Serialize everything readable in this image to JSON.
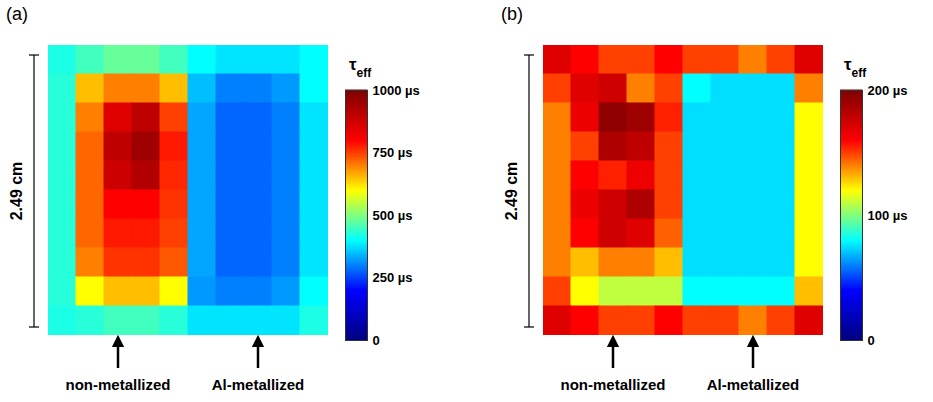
{
  "chart_data": [
    {
      "type": "heatmap",
      "panel_label": "(a)",
      "scale_bar": "2.49 cm",
      "annotations": [
        "non-metallized",
        "Al-metallized"
      ],
      "colorbar": {
        "title": "τ",
        "title_subscript": "eff",
        "range": [
          0,
          1000
        ],
        "ticks": [
          0,
          {
            "value": 250,
            "label": "250 µs"
          },
          {
            "value": 500,
            "label": "500 µs"
          },
          {
            "value": 750,
            "label": "750 µs"
          },
          {
            "value": 1000,
            "label": "1000 µs"
          }
        ]
      },
      "cells": [
        [
          420,
          450,
          480,
          480,
          450,
          400,
          380,
          380,
          380,
          400
        ],
        [
          430,
          650,
          700,
          700,
          650,
          350,
          300,
          300,
          320,
          400
        ],
        [
          430,
          700,
          850,
          900,
          750,
          330,
          280,
          280,
          300,
          380
        ],
        [
          430,
          720,
          900,
          950,
          780,
          330,
          280,
          280,
          300,
          380
        ],
        [
          430,
          720,
          880,
          920,
          770,
          330,
          280,
          280,
          300,
          380
        ],
        [
          430,
          720,
          800,
          800,
          760,
          330,
          280,
          280,
          300,
          380
        ],
        [
          430,
          720,
          780,
          780,
          750,
          330,
          280,
          280,
          300,
          380
        ],
        [
          430,
          700,
          760,
          760,
          730,
          330,
          280,
          280,
          300,
          380
        ],
        [
          430,
          600,
          650,
          650,
          600,
          320,
          300,
          300,
          320,
          400
        ],
        [
          420,
          430,
          450,
          450,
          430,
          380,
          380,
          380,
          380,
          420
        ]
      ]
    },
    {
      "type": "heatmap",
      "panel_label": "(b)",
      "scale_bar": "2.49 cm",
      "annotations": [
        "non-metallized",
        "Al-metallized"
      ],
      "colorbar": {
        "title": "τ",
        "title_subscript": "eff",
        "range": [
          0,
          200
        ],
        "ticks": [
          0,
          {
            "value": 100,
            "label": "100 µs"
          },
          {
            "value": 200,
            "label": "200 µs"
          }
        ]
      },
      "cells": [
        [
          170,
          160,
          150,
          150,
          160,
          150,
          150,
          140,
          150,
          170
        ],
        [
          150,
          170,
          175,
          140,
          150,
          80,
          75,
          75,
          75,
          140
        ],
        [
          140,
          165,
          195,
          190,
          155,
          75,
          75,
          75,
          75,
          120
        ],
        [
          140,
          150,
          185,
          180,
          150,
          75,
          75,
          75,
          75,
          120
        ],
        [
          140,
          160,
          155,
          165,
          150,
          75,
          75,
          75,
          75,
          120
        ],
        [
          140,
          165,
          175,
          185,
          150,
          75,
          75,
          75,
          75,
          120
        ],
        [
          140,
          160,
          175,
          170,
          145,
          75,
          75,
          75,
          75,
          120
        ],
        [
          140,
          130,
          140,
          140,
          130,
          75,
          75,
          75,
          75,
          120
        ],
        [
          150,
          120,
          110,
          110,
          110,
          80,
          80,
          80,
          80,
          130
        ],
        [
          170,
          160,
          150,
          150,
          160,
          150,
          150,
          140,
          150,
          170
        ]
      ]
    }
  ]
}
